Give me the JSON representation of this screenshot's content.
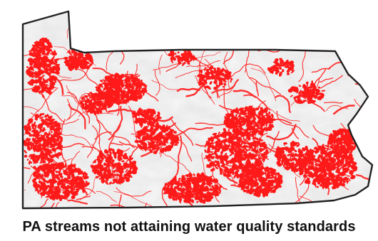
{
  "caption": "PA streams not attaining water quality standards",
  "map": {
    "region": "Pennsylvania",
    "impaired_color": "#ff1a1a",
    "stream_color": "#ff3030",
    "outline_color": "#222222",
    "background_color": "#f7f7f7"
  }
}
